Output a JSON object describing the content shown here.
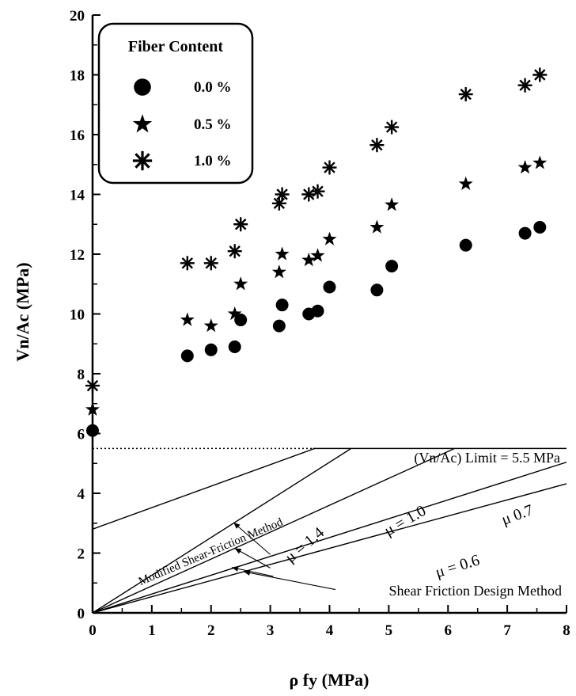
{
  "chart_data": {
    "type": "scatter",
    "xlabel": "ρ fy (MPa)",
    "ylabel": "Vn/Ac  (MPa)",
    "xlim": [
      0,
      8
    ],
    "ylim": [
      0,
      20
    ],
    "x_ticks": [
      "0",
      "1",
      "2",
      "3",
      "4",
      "5",
      "6",
      "7",
      "8"
    ],
    "y_ticks": [
      "0",
      "2",
      "4",
      "6",
      "8",
      "10",
      "12",
      "14",
      "16",
      "18",
      "20"
    ],
    "grid": false,
    "legend": {
      "title": "Fiber Content",
      "position": "top-left",
      "entries": [
        "0.0 %",
        "0.5 %",
        "1.0 %"
      ]
    },
    "series": [
      {
        "name": "0.0 %",
        "marker": "circle",
        "points": [
          [
            0,
            6.1
          ],
          [
            1.6,
            8.6
          ],
          [
            2.0,
            8.8
          ],
          [
            2.4,
            8.9
          ],
          [
            2.5,
            9.8
          ],
          [
            3.15,
            9.6
          ],
          [
            3.2,
            10.3
          ],
          [
            3.65,
            10.0
          ],
          [
            3.8,
            10.1
          ],
          [
            4.0,
            10.9
          ],
          [
            4.8,
            10.8
          ],
          [
            5.05,
            11.6
          ],
          [
            6.3,
            12.3
          ],
          [
            7.3,
            12.7
          ],
          [
            7.55,
            12.9
          ]
        ]
      },
      {
        "name": "0.5 %",
        "marker": "star",
        "points": [
          [
            0,
            6.8
          ],
          [
            1.6,
            9.8
          ],
          [
            2.0,
            9.6
          ],
          [
            2.4,
            10.0
          ],
          [
            2.5,
            11.0
          ],
          [
            3.15,
            11.4
          ],
          [
            3.2,
            12.0
          ],
          [
            3.65,
            11.8
          ],
          [
            3.8,
            11.95
          ],
          [
            4.0,
            12.5
          ],
          [
            4.8,
            12.9
          ],
          [
            5.05,
            13.65
          ],
          [
            6.3,
            14.35
          ],
          [
            7.3,
            14.9
          ],
          [
            7.55,
            15.05
          ]
        ]
      },
      {
        "name": "1.0 %",
        "marker": "asterisk",
        "points": [
          [
            0,
            7.6
          ],
          [
            1.6,
            11.7
          ],
          [
            2.0,
            11.7
          ],
          [
            2.4,
            12.1
          ],
          [
            2.5,
            13.0
          ],
          [
            3.15,
            13.7
          ],
          [
            3.2,
            14.0
          ],
          [
            3.65,
            14.0
          ],
          [
            3.8,
            14.1
          ],
          [
            4.0,
            14.9
          ],
          [
            4.8,
            15.65
          ],
          [
            5.05,
            16.25
          ],
          [
            6.3,
            17.35
          ],
          [
            7.3,
            17.65
          ],
          [
            7.55,
            18.0
          ]
        ]
      }
    ],
    "design_lines": [
      {
        "label": "μ = 1.4",
        "slope": 1.26,
        "intercept": 0,
        "cap": 5.5
      },
      {
        "label": "μ = 1.0",
        "slope": 0.9,
        "intercept": 0,
        "cap": 5.5
      },
      {
        "label": "μ 0.7",
        "slope": 0.63,
        "intercept": 0,
        "cap": 5.5
      },
      {
        "label": "μ = 0.6",
        "slope": 0.54,
        "intercept": 0,
        "cap": 5.5
      },
      {
        "label": "Modified Shear-Friction Method",
        "slope": 0.72,
        "intercept": 2.8,
        "cap": 5.5
      }
    ],
    "limit_line": {
      "label": "(Vn/Ac) Limit = 5.5 MPa",
      "y": 5.5
    },
    "annotation": "Shear Friction Design Method"
  }
}
